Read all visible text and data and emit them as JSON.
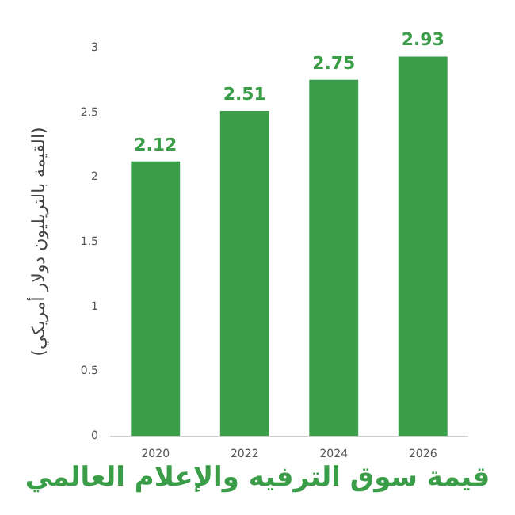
{
  "chart_data": {
    "type": "bar",
    "title": "قيمة سوق الترفيه والإعلام العالمي",
    "ylabel": "(القيمة بالتريليون دولار أمريكي)",
    "categories": [
      "2020",
      "2022",
      "2024",
      "2026"
    ],
    "values": [
      2.12,
      2.51,
      2.75,
      2.93
    ],
    "color": "#3a9d47",
    "ylim": [
      0,
      3
    ],
    "yticks": [
      0,
      0.5,
      1,
      1.5,
      2,
      2.5,
      3
    ],
    "data_labels": true,
    "grid": false
  }
}
